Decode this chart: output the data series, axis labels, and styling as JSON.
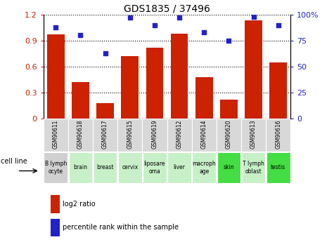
{
  "title": "GDS1835 / 37496",
  "gsm_labels": [
    "GSM90611",
    "GSM90618",
    "GSM90617",
    "GSM90615",
    "GSM90619",
    "GSM90612",
    "GSM90614",
    "GSM90620",
    "GSM90613",
    "GSM90616"
  ],
  "cell_lines": [
    "B lymph\nocyte",
    "brain",
    "breast",
    "cervix",
    "liposare\noma",
    "liver",
    "macroph\nage",
    "skin",
    "T lymph\noblast",
    "testis"
  ],
  "log2_ratio": [
    0.97,
    0.42,
    0.18,
    0.72,
    0.82,
    0.98,
    0.48,
    0.22,
    1.13,
    0.65
  ],
  "percentile_rank": [
    88,
    80,
    63,
    97,
    90,
    97,
    83,
    75,
    98,
    90
  ],
  "bar_color": "#cc2200",
  "dot_color": "#2222cc",
  "ylim_left": [
    0,
    1.2
  ],
  "ylim_right": [
    0,
    100
  ],
  "yticks_left": [
    0,
    0.3,
    0.6,
    0.9,
    1.2
  ],
  "yticks_right": [
    0,
    25,
    50,
    75,
    100
  ],
  "cell_line_colors": [
    "#d0d0d0",
    "#c8f0c8",
    "#c8f0c8",
    "#c8f0c8",
    "#c8f0c8",
    "#c8f0c8",
    "#c8f0c8",
    "#44dd44",
    "#c8f0c8",
    "#44dd44"
  ],
  "gsm_bg_color": "#d8d8d8",
  "legend_red_label": "log2 ratio",
  "legend_blue_label": "percentile rank within the sample",
  "cell_line_label": "cell line",
  "right_ytick_labels": [
    "0",
    "25",
    "50",
    "75",
    "100%"
  ]
}
